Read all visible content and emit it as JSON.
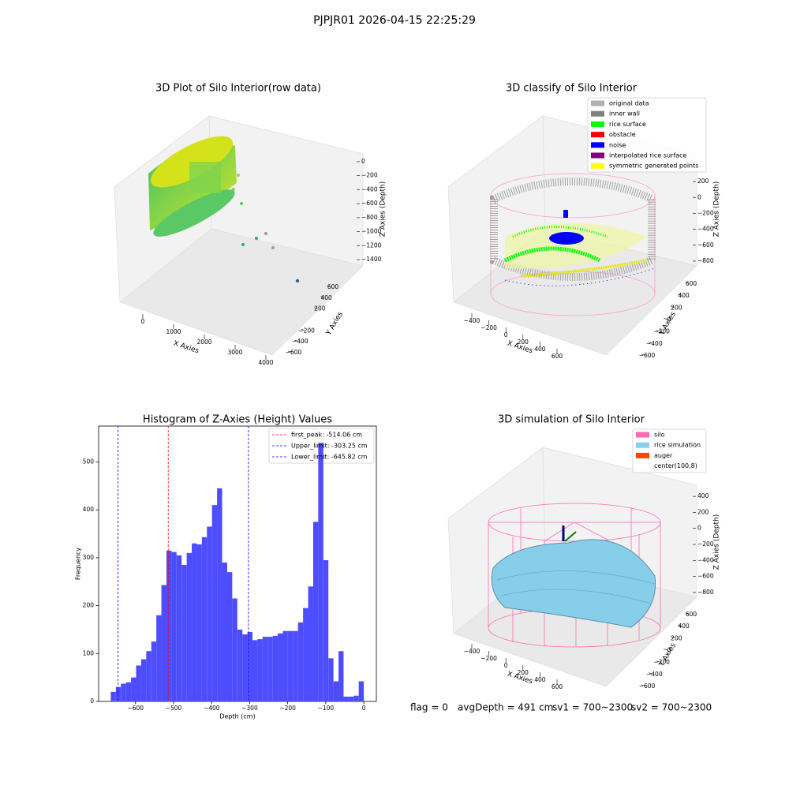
{
  "suptitle": "PJPJR01 2026-04-15 22:25:29",
  "footer": [
    "flag = 0",
    "avgDepth = 491 cm",
    "sv1 = 700~2300",
    "sv2 = 700~2300"
  ],
  "chart_data": [
    {
      "type": "scatter3d",
      "title": "3D Plot of Silo Interior(row data)",
      "xlabel": "X Axies",
      "ylabel": "Y Axies",
      "zlabel": "Z Axies (Depth)",
      "xlim": [
        -500,
        4500
      ],
      "xticks": [
        0,
        1000,
        2000,
        3000,
        4000
      ],
      "ylim": [
        -700,
        700
      ],
      "yticks": [
        {
          "value": -600,
          "label": "−600"
        },
        {
          "value": -400,
          "label": "−400"
        },
        {
          "value": -200,
          "label": "−200"
        },
        200,
        400,
        600
      ],
      "zlim": [
        -1500,
        100
      ],
      "zticks": [
        0,
        {
          "value": -200,
          "label": "−200"
        },
        {
          "value": -400,
          "label": "−400"
        },
        {
          "value": -600,
          "label": "−600"
        },
        {
          "value": -800,
          "label": "−800"
        },
        {
          "value": -1000,
          "label": "−1000"
        },
        {
          "value": -1200,
          "label": "−1200"
        },
        {
          "value": -1400,
          "label": "−1400"
        }
      ]
    },
    {
      "type": "scatter3d",
      "title": "3D classify of Silo Interior",
      "xlabel": "X Axies",
      "ylabel": "Y Axies",
      "zlabel": "Z Axies (Depth)",
      "xlim": [
        -500,
        700
      ],
      "xticks": [
        {
          "value": -400,
          "label": "−400"
        },
        {
          "value": -200,
          "label": "−200"
        },
        0,
        200,
        400,
        600
      ],
      "ylim": [
        -700,
        700
      ],
      "yticks": [
        {
          "value": -600,
          "label": "−600"
        },
        {
          "value": -400,
          "label": "−400"
        },
        {
          "value": -200,
          "label": "−200"
        },
        0,
        200,
        400,
        600
      ],
      "zlim": [
        -900,
        300
      ],
      "zticks": [
        {
          "value": -800,
          "label": "−800"
        },
        {
          "value": -600,
          "label": "−600"
        },
        {
          "value": -400,
          "label": "−400"
        },
        {
          "value": -200,
          "label": "−200"
        },
        0,
        200
      ],
      "legend": [
        {
          "name": "original data",
          "color": "#b0b0b0"
        },
        {
          "name": "inner wall",
          "color": "#808080"
        },
        {
          "name": "rice surface",
          "color": "#00ff00"
        },
        {
          "name": "obstacle",
          "color": "#ff0000"
        },
        {
          "name": "noise",
          "color": "#0000ff"
        },
        {
          "name": "interpolated rice surface",
          "color": "#800080"
        },
        {
          "name": "symmetric generated points",
          "color": "#ffff00"
        }
      ]
    },
    {
      "type": "histogram",
      "title": "Histogram of Z-Axies (Height) Values",
      "xlabel": "Depth (cm)",
      "ylabel": "Frequency",
      "color": "#4d4dff",
      "bins": [
        -665,
        -651.7,
        -638.4,
        -625.1,
        -611.8,
        -598.5,
        -585.2,
        -571.9,
        -558.6,
        -545.3,
        -532,
        -518.7,
        -505.4,
        -492.1,
        -478.8,
        -465.5,
        -452.2,
        -438.9,
        -425.6,
        -412.3,
        -399,
        -385.7,
        -372.4,
        -359.1,
        -345.8,
        -332.5,
        -319.2,
        -305.9,
        -292.6,
        -279.3,
        -266,
        -252.7,
        -239.4,
        -226.1,
        -212.8,
        -199.5,
        -186.2,
        -172.9,
        -159.6,
        -146.3,
        -133,
        -119.7,
        -106.4,
        -93.1,
        -79.8,
        -66.5,
        -53.2,
        -39.9,
        -26.6,
        -13.3,
        0
      ],
      "values": [
        20,
        30,
        37,
        40,
        50,
        75,
        88,
        105,
        125,
        180,
        243,
        315,
        312,
        305,
        285,
        310,
        330,
        328,
        343,
        365,
        410,
        445,
        290,
        270,
        215,
        150,
        140,
        145,
        128,
        130,
        135,
        135,
        137,
        142,
        147,
        147,
        147,
        165,
        195,
        240,
        375,
        540,
        295,
        90,
        42,
        105,
        10,
        10,
        12,
        42
      ],
      "xlim": [
        -697,
        33
      ],
      "xticks": [
        {
          "value": -600,
          "label": "−600"
        },
        {
          "value": -500,
          "label": "−500"
        },
        {
          "value": -400,
          "label": "−400"
        },
        {
          "value": -300,
          "label": "−300"
        },
        {
          "value": -200,
          "label": "−200"
        },
        {
          "value": -100,
          "label": "−100"
        },
        0
      ],
      "ylim": [
        0,
        575
      ],
      "yticks": [
        0,
        100,
        200,
        300,
        400,
        500
      ],
      "vlines": [
        {
          "name": "first_peak: -514.06 cm",
          "value": -514.06,
          "color": "#ff0000"
        },
        {
          "name": "Upper_limit: -303.25 cm",
          "value": -303.25,
          "color": "#0000ff"
        },
        {
          "name": "Lower_limit: -645.82 cm",
          "value": -645.82,
          "color": "#0000ff"
        }
      ]
    },
    {
      "type": "surface3d",
      "title": "3D simulation of Silo Interior",
      "xlabel": "X Axies",
      "ylabel": "Y Axies",
      "zlabel": "Z Axies (Depth)",
      "xlim": [
        -500,
        700
      ],
      "xticks": [
        {
          "value": -400,
          "label": "−400"
        },
        {
          "value": -200,
          "label": "−200"
        },
        0,
        200,
        400,
        600
      ],
      "ylim": [
        -700,
        700
      ],
      "yticks": [
        {
          "value": -600,
          "label": "−600"
        },
        {
          "value": -400,
          "label": "−400"
        },
        {
          "value": -200,
          "label": "−200"
        },
        0,
        200,
        400,
        600
      ],
      "zlim": [
        -900,
        500
      ],
      "zticks": [
        {
          "value": -800,
          "label": "−800"
        },
        {
          "value": -600,
          "label": "−600"
        },
        {
          "value": -400,
          "label": "−400"
        },
        {
          "value": -200,
          "label": "−200"
        },
        0,
        200,
        400
      ],
      "legend": [
        {
          "name": "silo",
          "color": "#ff69b4"
        },
        {
          "name": "rice simulation",
          "color": "#87ceeb"
        },
        {
          "name": "auger",
          "color": "#ff4500"
        },
        {
          "name": "center(100,8)",
          "color": "#ffffff"
        }
      ]
    }
  ]
}
